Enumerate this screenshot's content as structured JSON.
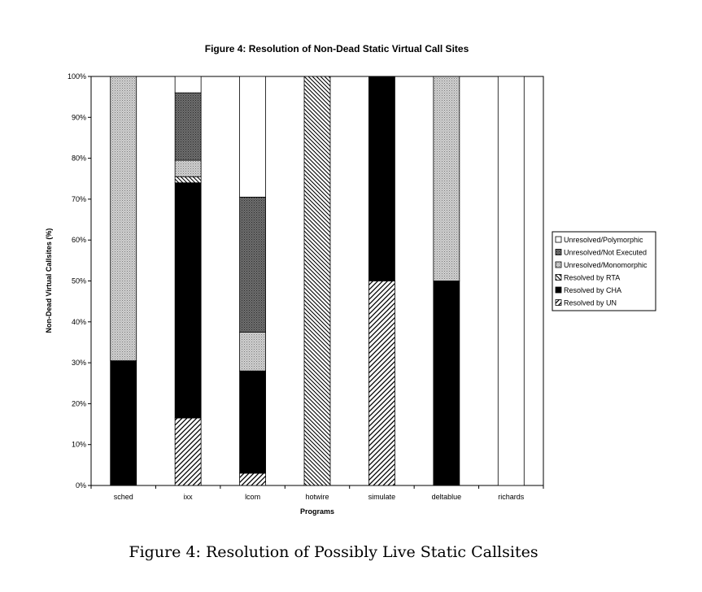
{
  "caption": "Figure 4: Resolution of Possibly Live Static Callsites",
  "chart_data": {
    "type": "bar",
    "stacked": true,
    "percent": true,
    "title": "Figure 4: Resolution of Non-Dead Static Virtual Call Sites",
    "xlabel": "Programs",
    "ylabel": "Non-Dead Virtual Callsites (%)",
    "ylim": [
      0,
      100
    ],
    "yticks": [
      "0%",
      "10%",
      "20%",
      "30%",
      "40%",
      "50%",
      "60%",
      "70%",
      "80%",
      "90%",
      "100%"
    ],
    "grid": false,
    "legend_position": "right",
    "categories": [
      "sched",
      "ixx",
      "lcom",
      "hotwire",
      "simulate",
      "deltablue",
      "richards"
    ],
    "series": [
      {
        "name": "Resolved by UN",
        "pattern": "diag-up",
        "values": [
          0,
          16.5,
          3,
          0,
          50,
          0,
          0
        ]
      },
      {
        "name": "Resolved by CHA",
        "pattern": "solid-black",
        "values": [
          30.5,
          57.5,
          25,
          0,
          50,
          50,
          0
        ]
      },
      {
        "name": "Resolved by RTA",
        "pattern": "diag-down",
        "values": [
          0,
          1.5,
          0,
          100,
          0,
          0,
          0
        ]
      },
      {
        "name": "Unresolved/Monomorphic",
        "pattern": "light-gray-dots",
        "values": [
          69.5,
          4,
          9.5,
          0,
          0,
          50,
          0
        ]
      },
      {
        "name": "Unresolved/Not Executed",
        "pattern": "dark-gray-dots",
        "values": [
          0,
          16.5,
          33,
          0,
          0,
          0,
          0
        ]
      },
      {
        "name": "Unresolved/Polymorphic",
        "pattern": "white",
        "values": [
          0,
          4,
          29.5,
          0,
          0,
          0,
          100
        ]
      }
    ],
    "legend_order": [
      "Unresolved/Polymorphic",
      "Unresolved/Not Executed",
      "Unresolved/Monomorphic",
      "Resolved by RTA",
      "Resolved by CHA",
      "Resolved by UN"
    ]
  }
}
